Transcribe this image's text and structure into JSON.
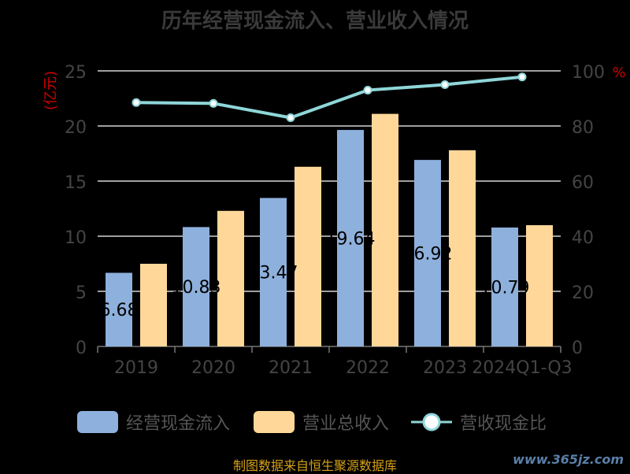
{
  "title": "历年经营现金流入、营业收入情况",
  "source": "制图数据来自恒生聚源数据库",
  "watermark": "www.365jz.com",
  "legend": {
    "items": [
      {
        "label": "经营现金流入",
        "color": "#8eb0dc",
        "kind": "bar"
      },
      {
        "label": "营业总收入",
        "color": "#ffd899",
        "kind": "bar"
      },
      {
        "label": "营收现金比",
        "color": "#8fd6d8",
        "kind": "line"
      }
    ]
  },
  "chart_data": {
    "type": "bar",
    "categories": [
      "2019",
      "2020",
      "2021",
      "2022",
      "2023",
      "2024Q1-Q3"
    ],
    "series": [
      {
        "name": "经营现金流入",
        "axis": "left",
        "values": [
          6.68,
          10.83,
          13.47,
          19.64,
          16.92,
          10.79
        ],
        "color": "#8eb0dc",
        "labels": [
          "6.68",
          "10.83",
          "13.47",
          "19.64",
          "16.92",
          "10.79"
        ]
      },
      {
        "name": "营业总收入",
        "axis": "left",
        "values": [
          7.5,
          12.3,
          16.3,
          21.1,
          17.8,
          11.0
        ],
        "color": "#ffd899"
      },
      {
        "name": "营收现金比",
        "axis": "right",
        "type": "line",
        "values": [
          88.5,
          88.2,
          83.0,
          93.0,
          95.0,
          97.8
        ],
        "color": "#8fd6d8"
      }
    ],
    "yleft": {
      "label": "(亿元)",
      "ticks": [
        0,
        5,
        10,
        15,
        20,
        25
      ],
      "ylim": [
        0,
        25
      ]
    },
    "yright": {
      "label": "%",
      "ticks": [
        0,
        20,
        40,
        60,
        80,
        100
      ],
      "ylim": [
        0,
        100
      ]
    },
    "grid": true,
    "legend_position": "bottom"
  }
}
